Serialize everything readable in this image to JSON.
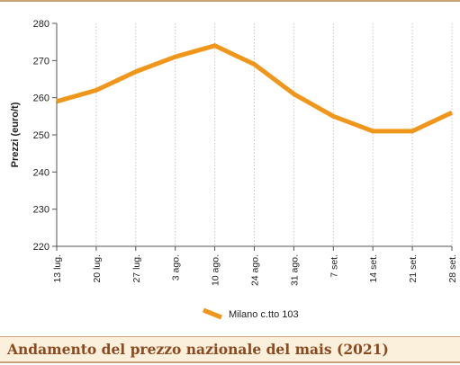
{
  "chart_data": {
    "type": "line",
    "title": "Andamento del prezzo nazionale del mais (2021)",
    "ylabel": "Prezzi (euro/t)",
    "xlabel": "",
    "ylim": [
      220,
      280
    ],
    "yticks": [
      220,
      230,
      240,
      250,
      260,
      270,
      280
    ],
    "categories": [
      "13 lug.",
      "20 lug.",
      "27 lug.",
      "3 ago.",
      "10 ago.",
      "24 ago.",
      "31 ago.",
      "7 set.",
      "14 set.",
      "21 set.",
      "28 set."
    ],
    "grid": "vertical",
    "legend_position": "bottom",
    "series": [
      {
        "name": "Milano  c.tto 103",
        "values": [
          259,
          262,
          267,
          271,
          274,
          269,
          261,
          255,
          251,
          251,
          256
        ],
        "color": "#f0961a"
      }
    ]
  },
  "caption": {
    "text": "Andamento del prezzo nazionale del mais (2021)"
  },
  "colors": {
    "line": "#f0961a",
    "rule": "#c9a27a",
    "caption_bg": "#fbf0dc",
    "caption_text": "#8b4a1f"
  }
}
